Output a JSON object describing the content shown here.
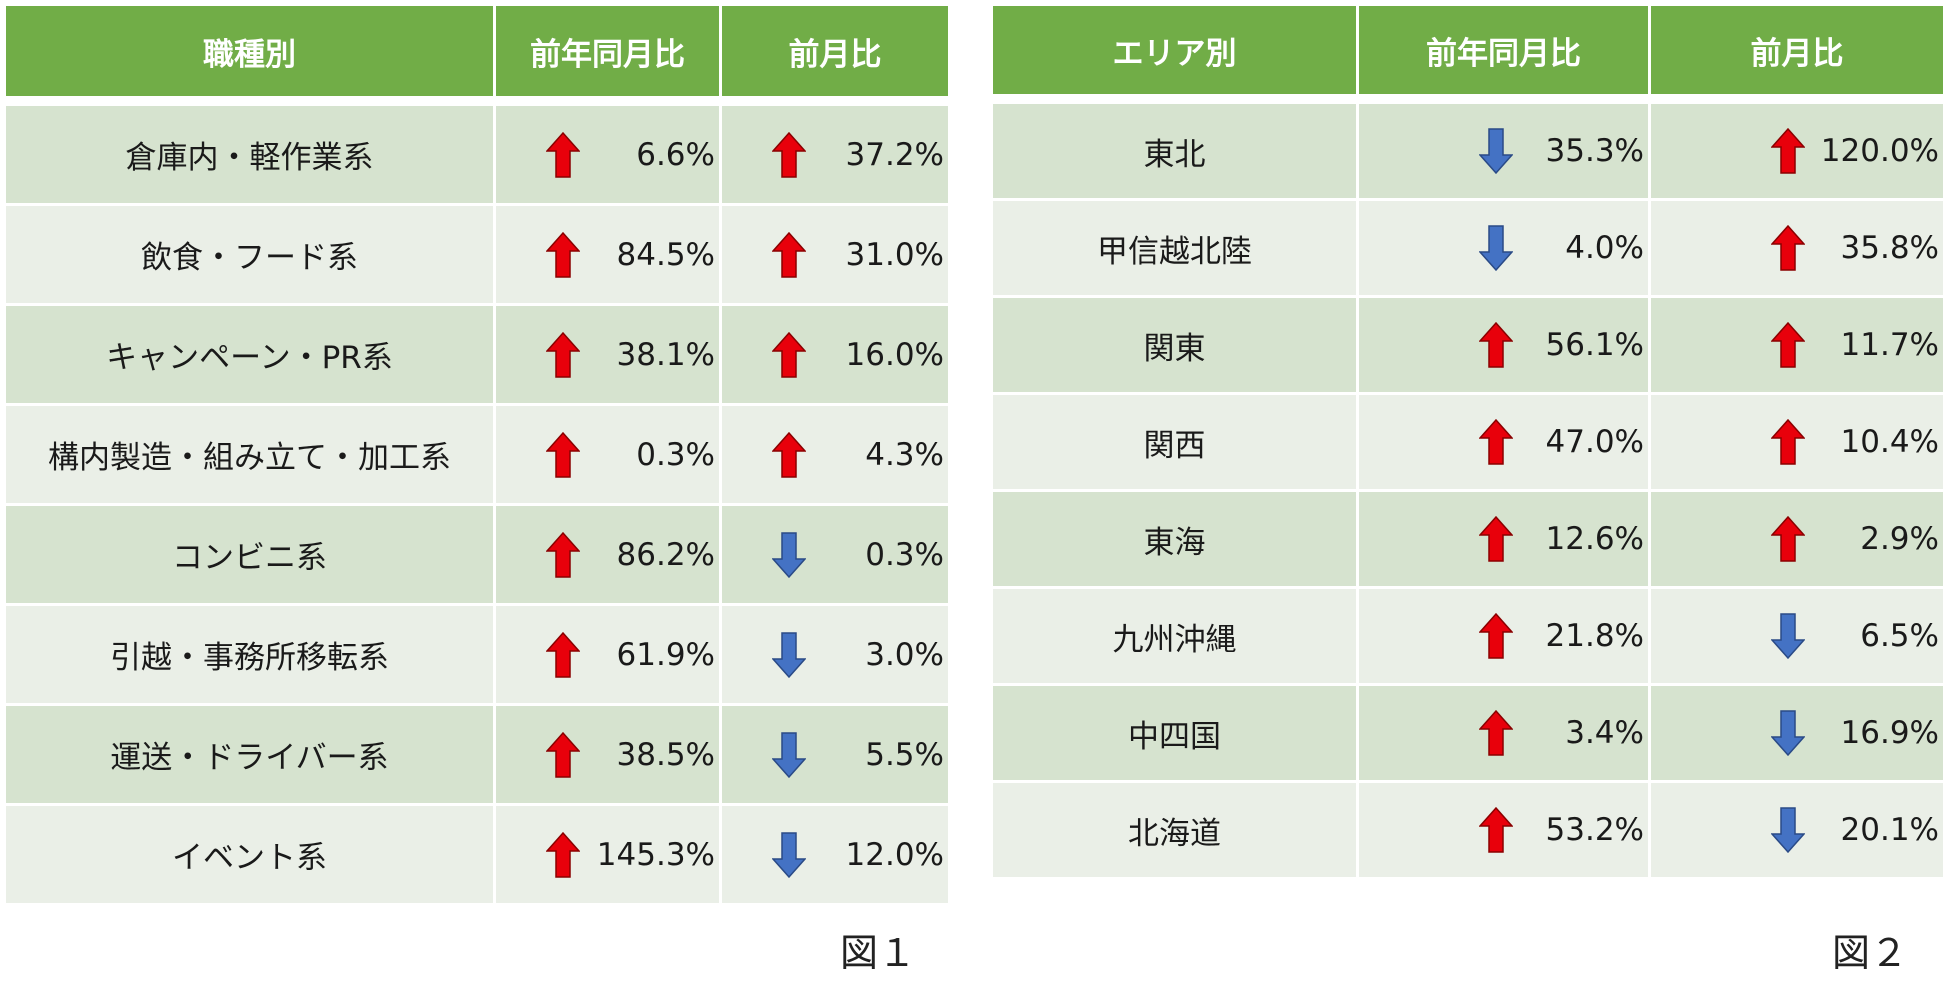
{
  "colors": {
    "header_bg": "#71ad47",
    "row_dark": "#d6e3cf",
    "row_light": "#eaefe7",
    "arrow_up": "#e8000b",
    "arrow_down": "#4472c4"
  },
  "table1": {
    "headers": [
      "職種別",
      "前年同月比",
      "前月比"
    ],
    "rows": [
      {
        "name": "倉庫内・軽作業系",
        "yoy": {
          "dir": "up",
          "value": "6.6%"
        },
        "mom": {
          "dir": "up",
          "value": "37.2%"
        }
      },
      {
        "name": "飲食・フード系",
        "yoy": {
          "dir": "up",
          "value": "84.5%"
        },
        "mom": {
          "dir": "up",
          "value": "31.0%"
        }
      },
      {
        "name": "キャンペーン・PR系",
        "yoy": {
          "dir": "up",
          "value": "38.1%"
        },
        "mom": {
          "dir": "up",
          "value": "16.0%"
        }
      },
      {
        "name": "構内製造・組み立て・加工系",
        "yoy": {
          "dir": "up",
          "value": "0.3%"
        },
        "mom": {
          "dir": "up",
          "value": "4.3%"
        }
      },
      {
        "name": "コンビニ系",
        "yoy": {
          "dir": "up",
          "value": "86.2%"
        },
        "mom": {
          "dir": "down",
          "value": "0.3%"
        }
      },
      {
        "name": "引越・事務所移転系",
        "yoy": {
          "dir": "up",
          "value": "61.9%"
        },
        "mom": {
          "dir": "down",
          "value": "3.0%"
        }
      },
      {
        "name": "運送・ドライバー系",
        "yoy": {
          "dir": "up",
          "value": "38.5%"
        },
        "mom": {
          "dir": "down",
          "value": "5.5%"
        }
      },
      {
        "name": "イベント系",
        "yoy": {
          "dir": "up",
          "value": "145.3%"
        },
        "mom": {
          "dir": "down",
          "value": "12.0%"
        }
      }
    ],
    "caption": "図１"
  },
  "table2": {
    "headers": [
      "エリア別",
      "前年同月比",
      "前月比"
    ],
    "rows": [
      {
        "name": "東北",
        "yoy": {
          "dir": "down",
          "value": "35.3%"
        },
        "mom": {
          "dir": "up",
          "value": "120.0%"
        }
      },
      {
        "name": "甲信越北陸",
        "yoy": {
          "dir": "down",
          "value": "4.0%"
        },
        "mom": {
          "dir": "up",
          "value": "35.8%"
        }
      },
      {
        "name": "関東",
        "yoy": {
          "dir": "up",
          "value": "56.1%"
        },
        "mom": {
          "dir": "up",
          "value": "11.7%"
        }
      },
      {
        "name": "関西",
        "yoy": {
          "dir": "up",
          "value": "47.0%"
        },
        "mom": {
          "dir": "up",
          "value": "10.4%"
        }
      },
      {
        "name": "東海",
        "yoy": {
          "dir": "up",
          "value": "12.6%"
        },
        "mom": {
          "dir": "up",
          "value": "2.9%"
        }
      },
      {
        "name": "九州沖縄",
        "yoy": {
          "dir": "up",
          "value": "21.8%"
        },
        "mom": {
          "dir": "down",
          "value": "6.5%"
        }
      },
      {
        "name": "中四国",
        "yoy": {
          "dir": "up",
          "value": "3.4%"
        },
        "mom": {
          "dir": "down",
          "value": "16.9%"
        }
      },
      {
        "name": "北海道",
        "yoy": {
          "dir": "up",
          "value": "53.2%"
        },
        "mom": {
          "dir": "down",
          "value": "20.1%"
        }
      }
    ],
    "caption": "図２"
  }
}
